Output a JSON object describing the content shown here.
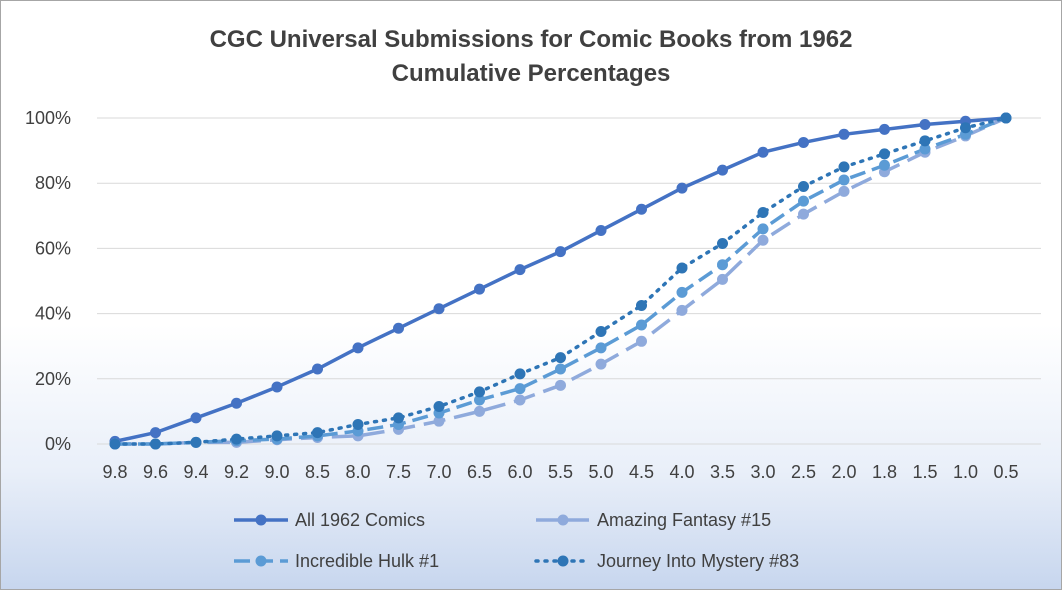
{
  "chart_data": {
    "type": "line",
    "title": "CGC Universal Submissions for Comic Books from 1962",
    "subtitle": "Cumulative Percentages",
    "xlabel": "",
    "ylabel": "",
    "categories": [
      "9.8",
      "9.6",
      "9.4",
      "9.2",
      "9.0",
      "8.5",
      "8.0",
      "7.5",
      "7.0",
      "6.5",
      "6.0",
      "5.5",
      "5.0",
      "4.5",
      "4.0",
      "3.5",
      "3.0",
      "2.5",
      "2.0",
      "1.8",
      "1.5",
      "1.0",
      "0.5"
    ],
    "y_ticks": [
      "0%",
      "20%",
      "40%",
      "60%",
      "80%",
      "100%"
    ],
    "ylim": [
      0,
      100
    ],
    "grid": true,
    "legend_position": "bottom",
    "series": [
      {
        "name": "All 1962 Comics",
        "style": "solid",
        "color": "#4472c4",
        "values": [
          0.8,
          3.5,
          8,
          12.5,
          17.5,
          23,
          29.5,
          35.5,
          41.5,
          47.5,
          53.5,
          59,
          65.5,
          72,
          78.5,
          84,
          89.5,
          92.5,
          95,
          96.5,
          98,
          99,
          100
        ]
      },
      {
        "name": "Amazing Fantasy #15",
        "style": "long-dash",
        "color": "#8faadc",
        "values": [
          0,
          0,
          0.5,
          0.5,
          1.3,
          2,
          2.5,
          4.5,
          7,
          10,
          13.5,
          18,
          24.5,
          31.5,
          41,
          50.5,
          62.5,
          70.5,
          77.5,
          83.5,
          89.5,
          94.5,
          100
        ]
      },
      {
        "name": "Incredible Hulk #1",
        "style": "dash",
        "color": "#5b9bd5",
        "values": [
          0,
          0,
          0.5,
          1,
          1.5,
          2.5,
          4,
          6,
          9.5,
          13.5,
          17,
          23,
          29.5,
          36.5,
          46.5,
          55,
          66,
          74.5,
          81,
          85.5,
          90.5,
          95,
          100
        ]
      },
      {
        "name": "Journey Into Mystery #83",
        "style": "dotted",
        "color": "#2e75b6",
        "values": [
          0,
          0,
          0.5,
          1.5,
          2.5,
          3.5,
          6,
          8,
          11.5,
          16,
          21.5,
          26.5,
          34.5,
          42.5,
          54,
          61.5,
          71,
          79,
          85,
          89,
          93,
          97,
          100
        ]
      }
    ]
  }
}
